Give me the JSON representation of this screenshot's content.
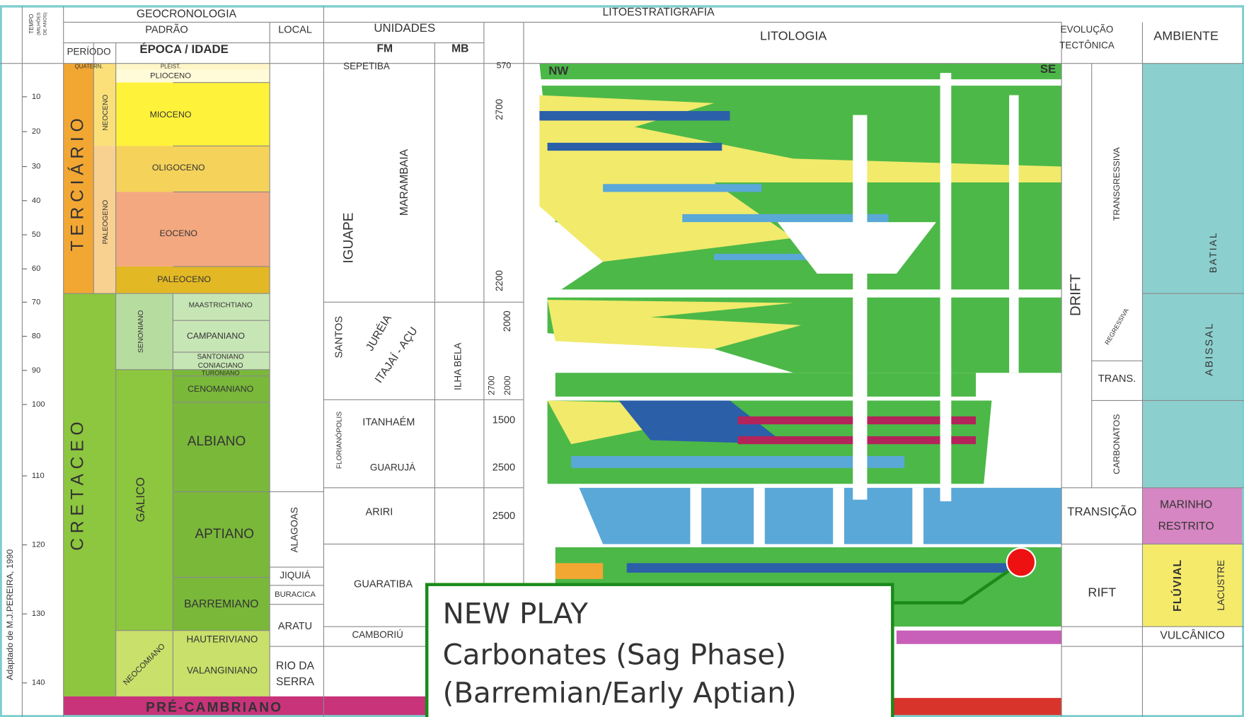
{
  "header": {
    "time_axis": [
      "TEMPO",
      "(MILHÕES",
      "DE ANOS)"
    ],
    "geocronologia": "GEOCRONOLOGIA",
    "padrao": "PADRÃO",
    "local": "LOCAL",
    "periodo": "PERÍODO",
    "epoca": "ÉPOCA / IDADE",
    "litoestratigrafia": "LITOESTRATIGRAFIA",
    "unidades": "UNIDADES",
    "fm": "FM",
    "mb": "MB",
    "litologia": "LITOLOGIA",
    "evolucao": [
      "EVOLUÇÃO",
      "TECTÔNICA"
    ],
    "ambiente": "AMBIENTE"
  },
  "time_ticks": [
    "10",
    "20",
    "30",
    "40",
    "50",
    "60",
    "70",
    "80",
    "90",
    "100",
    "110",
    "120",
    "130",
    "140"
  ],
  "periods": [
    "TERCIÁRIO",
    "CRETACEO"
  ],
  "epochs": [
    "NEOCENO",
    "PALEOGENO",
    "SENONIANO",
    "GALICO",
    "NEOCOMIANO"
  ],
  "ages": [
    "QUATERN.",
    "PLEIST.",
    "PLIOCENO",
    "MIOCENO",
    "OLIGOCENO",
    "EOCENO",
    "PALEOCENO",
    "MAASTRICHTIANO",
    "CAMPANIANO",
    "SANTONIANO",
    "CONIACIANO",
    "TURONIANO",
    "CENOMANIANO",
    "ALBIANO",
    "APTIANO",
    "BARREMIANO",
    "HAUTERIVIANO",
    "VALANGINIANO"
  ],
  "pre_cambrian": "PRÉ-CAMBRIANO",
  "local": [
    "ALAGOAS",
    "JIQUIÁ",
    "BURACICA",
    "ARATU",
    [
      "RIO DA",
      "SERRA"
    ]
  ],
  "formations": [
    "SEPETIBA",
    "IGUAPE",
    "SANTOS",
    "FLORIANÓPOLIS",
    "ARIRI",
    "GUARATIBA",
    "CAMBORIÚ"
  ],
  "members": [
    "MARAMBAIA",
    "JURÉIA",
    "ITAJAÍ - AÇU",
    "ITANHAÉM",
    "GUARUJÁ",
    "ILHA BELA"
  ],
  "thickness": [
    "570",
    "2700",
    "2200",
    "2000",
    "2700",
    "2000",
    "1500",
    "2500",
    "2500"
  ],
  "tectonics": [
    "DRIFT",
    "TRANSGRESSIVA",
    "REGRESSIVA",
    "TRANS.",
    "CARBONATOS",
    "TRANSIÇÃO",
    "RIFT"
  ],
  "environments": [
    "BATIAL",
    "ABISSAL",
    [
      "MARINHO",
      "RESTRITO"
    ],
    "FLÚVIAL",
    "LACUSTRE",
    "VULCÂNICO"
  ],
  "lithology_labels": [
    "NW",
    "SE"
  ],
  "credit": "Adaptado de M.J.PEREIRA, 1990",
  "callout": {
    "title": "NEW PLAY",
    "lines": [
      "Carbonates (Sag Phase)",
      "(Barremian/Early Aptian)"
    ]
  }
}
